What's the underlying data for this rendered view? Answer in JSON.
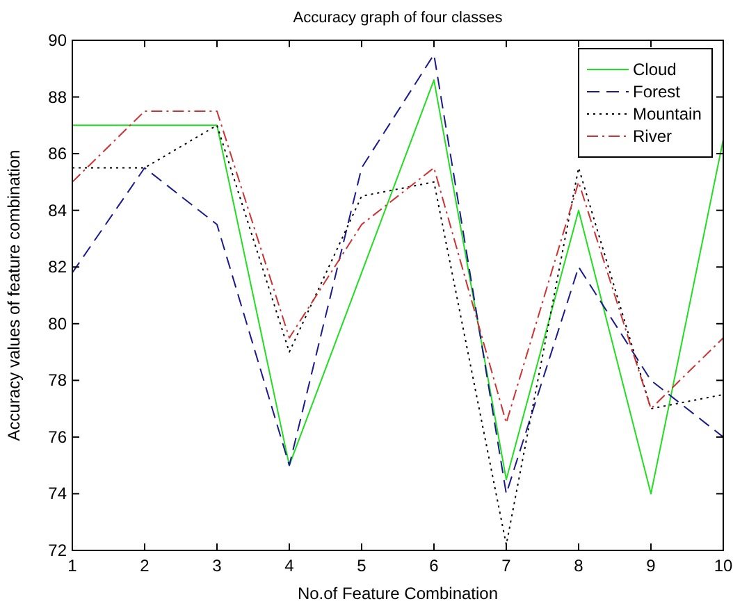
{
  "chart_data": {
    "type": "line",
    "title": "Accuracy graph of four classes",
    "xlabel": "No.of Feature Combination",
    "ylabel": "Accuracy values of feature combination",
    "x": [
      1,
      2,
      3,
      4,
      5,
      6,
      7,
      8,
      9,
      10
    ],
    "xlim": [
      1,
      10
    ],
    "xticks": [
      1,
      2,
      3,
      4,
      5,
      6,
      7,
      8,
      9,
      10
    ],
    "ylim": [
      72,
      90
    ],
    "yticks": [
      72,
      74,
      76,
      78,
      80,
      82,
      84,
      86,
      88,
      90
    ],
    "grid": false,
    "legend": "top right",
    "marker": "none",
    "series": [
      {
        "name": "Cloud",
        "color": "#22dd22",
        "line_style": "solid",
        "values": [
          87,
          87,
          87,
          75,
          81.8,
          88.6,
          74.5,
          84,
          74,
          86.5
        ]
      },
      {
        "name": "Forest",
        "color": "#1a1a8c",
        "line_style": "dashed",
        "values": [
          81.8,
          85.5,
          83.5,
          75,
          85.5,
          89.5,
          74,
          82,
          78,
          76
        ]
      },
      {
        "name": "Mountain",
        "color": "#000000",
        "line_style": "dotted",
        "values": [
          85.5,
          85.5,
          87,
          79,
          84.5,
          85,
          72.2,
          85.5,
          77,
          77.5
        ]
      },
      {
        "name": "River",
        "color": "#cc3333",
        "line_style": "dashdot",
        "values": [
          85,
          87.5,
          87.5,
          79.5,
          83.5,
          85.5,
          76.5,
          85,
          77,
          79.5
        ]
      }
    ]
  }
}
